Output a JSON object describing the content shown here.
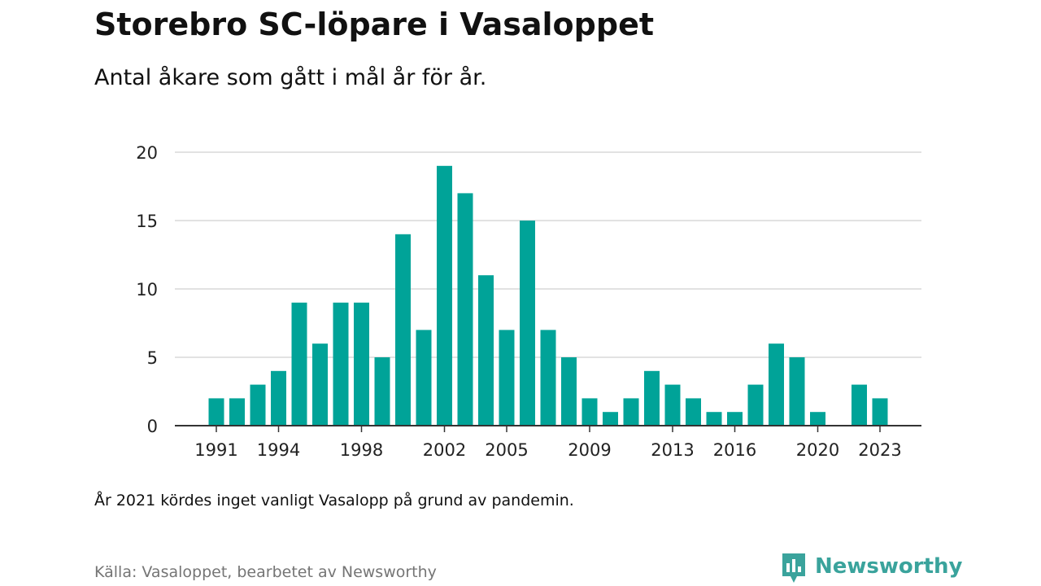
{
  "header": {
    "title": "Storebro SC-löpare i Vasaloppet",
    "subtitle": "Antal åkare som gått i mål år för år."
  },
  "footer": {
    "note": "År 2021 kördes inget vanligt Vasalopp på grund av pandemin.",
    "source": "Källa: Vasaloppet, bearbetet av Newsworthy",
    "brand_name": "Newsworthy",
    "brand_icon": "newsworthy-logo-icon"
  },
  "colors": {
    "bar": "#00a398",
    "grid": "#d9d9d9",
    "axis": "#333333",
    "brand": "#3aa39c",
    "source": "#757575"
  },
  "chart_data": {
    "type": "bar",
    "title": "Storebro SC-löpare i Vasaloppet",
    "subtitle": "Antal åkare som gått i mål år för år.",
    "xlabel": "",
    "ylabel": "",
    "ylim": [
      0,
      20
    ],
    "yticks": [
      0,
      5,
      10,
      15,
      20
    ],
    "xtick_labels": [
      "1991",
      "1994",
      "1998",
      "2002",
      "2005",
      "2009",
      "2013",
      "2016",
      "2020",
      "2023"
    ],
    "grid": true,
    "legend": "none",
    "categories": [
      "1991",
      "1992",
      "1993",
      "1994",
      "1995",
      "1996",
      "1997",
      "1998",
      "1999",
      "2000",
      "2001",
      "2002",
      "2003",
      "2004",
      "2005",
      "2006",
      "2007",
      "2008",
      "2009",
      "2010",
      "2011",
      "2012",
      "2013",
      "2014",
      "2015",
      "2016",
      "2017",
      "2018",
      "2019",
      "2020",
      "2021",
      "2022",
      "2023"
    ],
    "values": [
      2,
      2,
      3,
      4,
      9,
      6,
      9,
      9,
      5,
      14,
      7,
      19,
      17,
      11,
      7,
      15,
      7,
      5,
      2,
      1,
      2,
      4,
      3,
      2,
      1,
      1,
      3,
      6,
      5,
      1,
      null,
      3,
      2
    ]
  }
}
